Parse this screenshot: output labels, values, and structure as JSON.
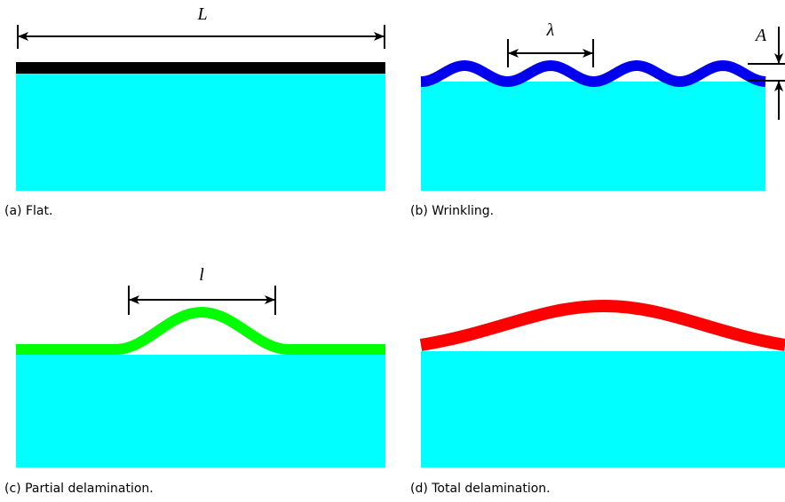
{
  "panels": [
    {
      "symbol": "L",
      "caption": "(a) Flat."
    },
    {
      "symbols": [
        "λ",
        "A"
      ],
      "caption": "(b) Wrinkling."
    },
    {
      "symbol": "l",
      "caption": "(c) Partial delamination."
    },
    {
      "caption": "(d) Total delamination."
    }
  ]
}
